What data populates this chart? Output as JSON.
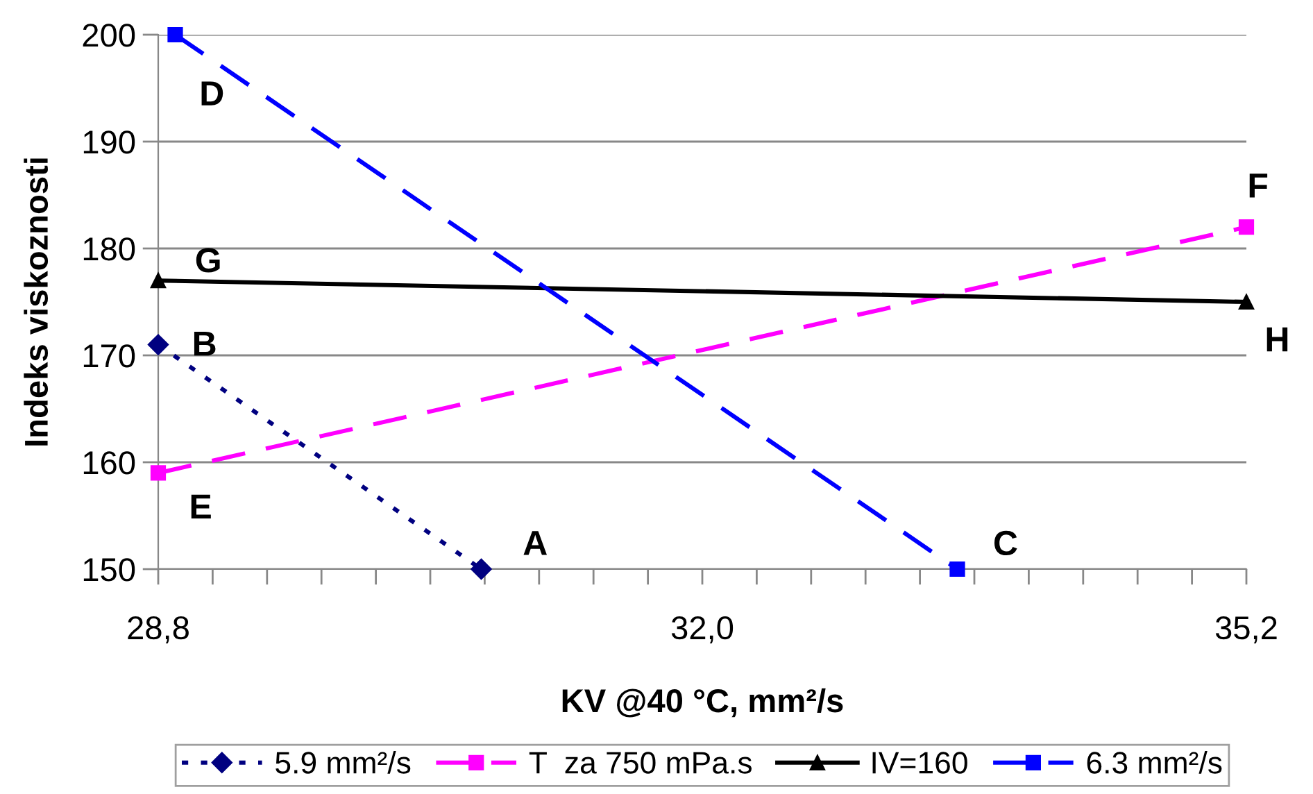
{
  "chart_data": {
    "type": "line",
    "xlabel": "KV @40 °C, mm²/s",
    "ylabel": "Indeks viskoznosti",
    "xlim": [
      28.8,
      35.2
    ],
    "ylim": [
      150,
      200
    ],
    "xticks": [
      {
        "value": 28.8,
        "label": "28,8"
      },
      {
        "value": 29.12,
        "label": null
      },
      {
        "value": 29.44,
        "label": null
      },
      {
        "value": 29.76,
        "label": null
      },
      {
        "value": 30.08,
        "label": null
      },
      {
        "value": 30.4,
        "label": null
      },
      {
        "value": 30.72,
        "label": null
      },
      {
        "value": 31.04,
        "label": null
      },
      {
        "value": 31.36,
        "label": null
      },
      {
        "value": 31.68,
        "label": null
      },
      {
        "value": 32.0,
        "label": "32,0"
      },
      {
        "value": 32.32,
        "label": null
      },
      {
        "value": 32.64,
        "label": null
      },
      {
        "value": 32.96,
        "label": null
      },
      {
        "value": 33.28,
        "label": null
      },
      {
        "value": 33.6,
        "label": null
      },
      {
        "value": 33.92,
        "label": null
      },
      {
        "value": 34.24,
        "label": null
      },
      {
        "value": 34.56,
        "label": null
      },
      {
        "value": 34.88,
        "label": null
      },
      {
        "value": 35.2,
        "label": "35,2"
      }
    ],
    "yticks": [
      150,
      160,
      170,
      180,
      190,
      200
    ],
    "grid": "y",
    "legend": "bottom",
    "series": [
      {
        "name": "5.9 mm²/s",
        "color": "#000080",
        "marker": "diamond",
        "line_style": "dotted",
        "x": [
          28.8,
          30.7
        ],
        "values": [
          171,
          150
        ]
      },
      {
        "name": "T  za 750 mPa.s",
        "color": "#ff00ff",
        "marker": "square",
        "line_style": "dashed",
        "x": [
          28.8,
          35.2
        ],
        "values": [
          159,
          182
        ]
      },
      {
        "name": "IV=160",
        "color": "#000000",
        "marker": "triangle",
        "line_style": "solid",
        "x": [
          28.8,
          35.2
        ],
        "values": [
          177,
          175
        ]
      },
      {
        "name": "6.3 mm²/s",
        "color": "#0000ff",
        "marker": "square",
        "line_style": "dashed",
        "x": [
          28.9,
          33.5
        ],
        "values": [
          200,
          150
        ]
      }
    ],
    "annotations": [
      {
        "text": "A",
        "x": 30.7,
        "y": 150
      },
      {
        "text": "B",
        "x": 28.8,
        "y": 171
      },
      {
        "text": "C",
        "x": 33.5,
        "y": 150
      },
      {
        "text": "D",
        "x": 28.9,
        "y": 200
      },
      {
        "text": "E",
        "x": 28.8,
        "y": 159
      },
      {
        "text": "F",
        "x": 35.2,
        "y": 182
      },
      {
        "text": "G",
        "x": 28.8,
        "y": 177
      },
      {
        "text": "H",
        "x": 35.2,
        "y": 175
      }
    ]
  }
}
